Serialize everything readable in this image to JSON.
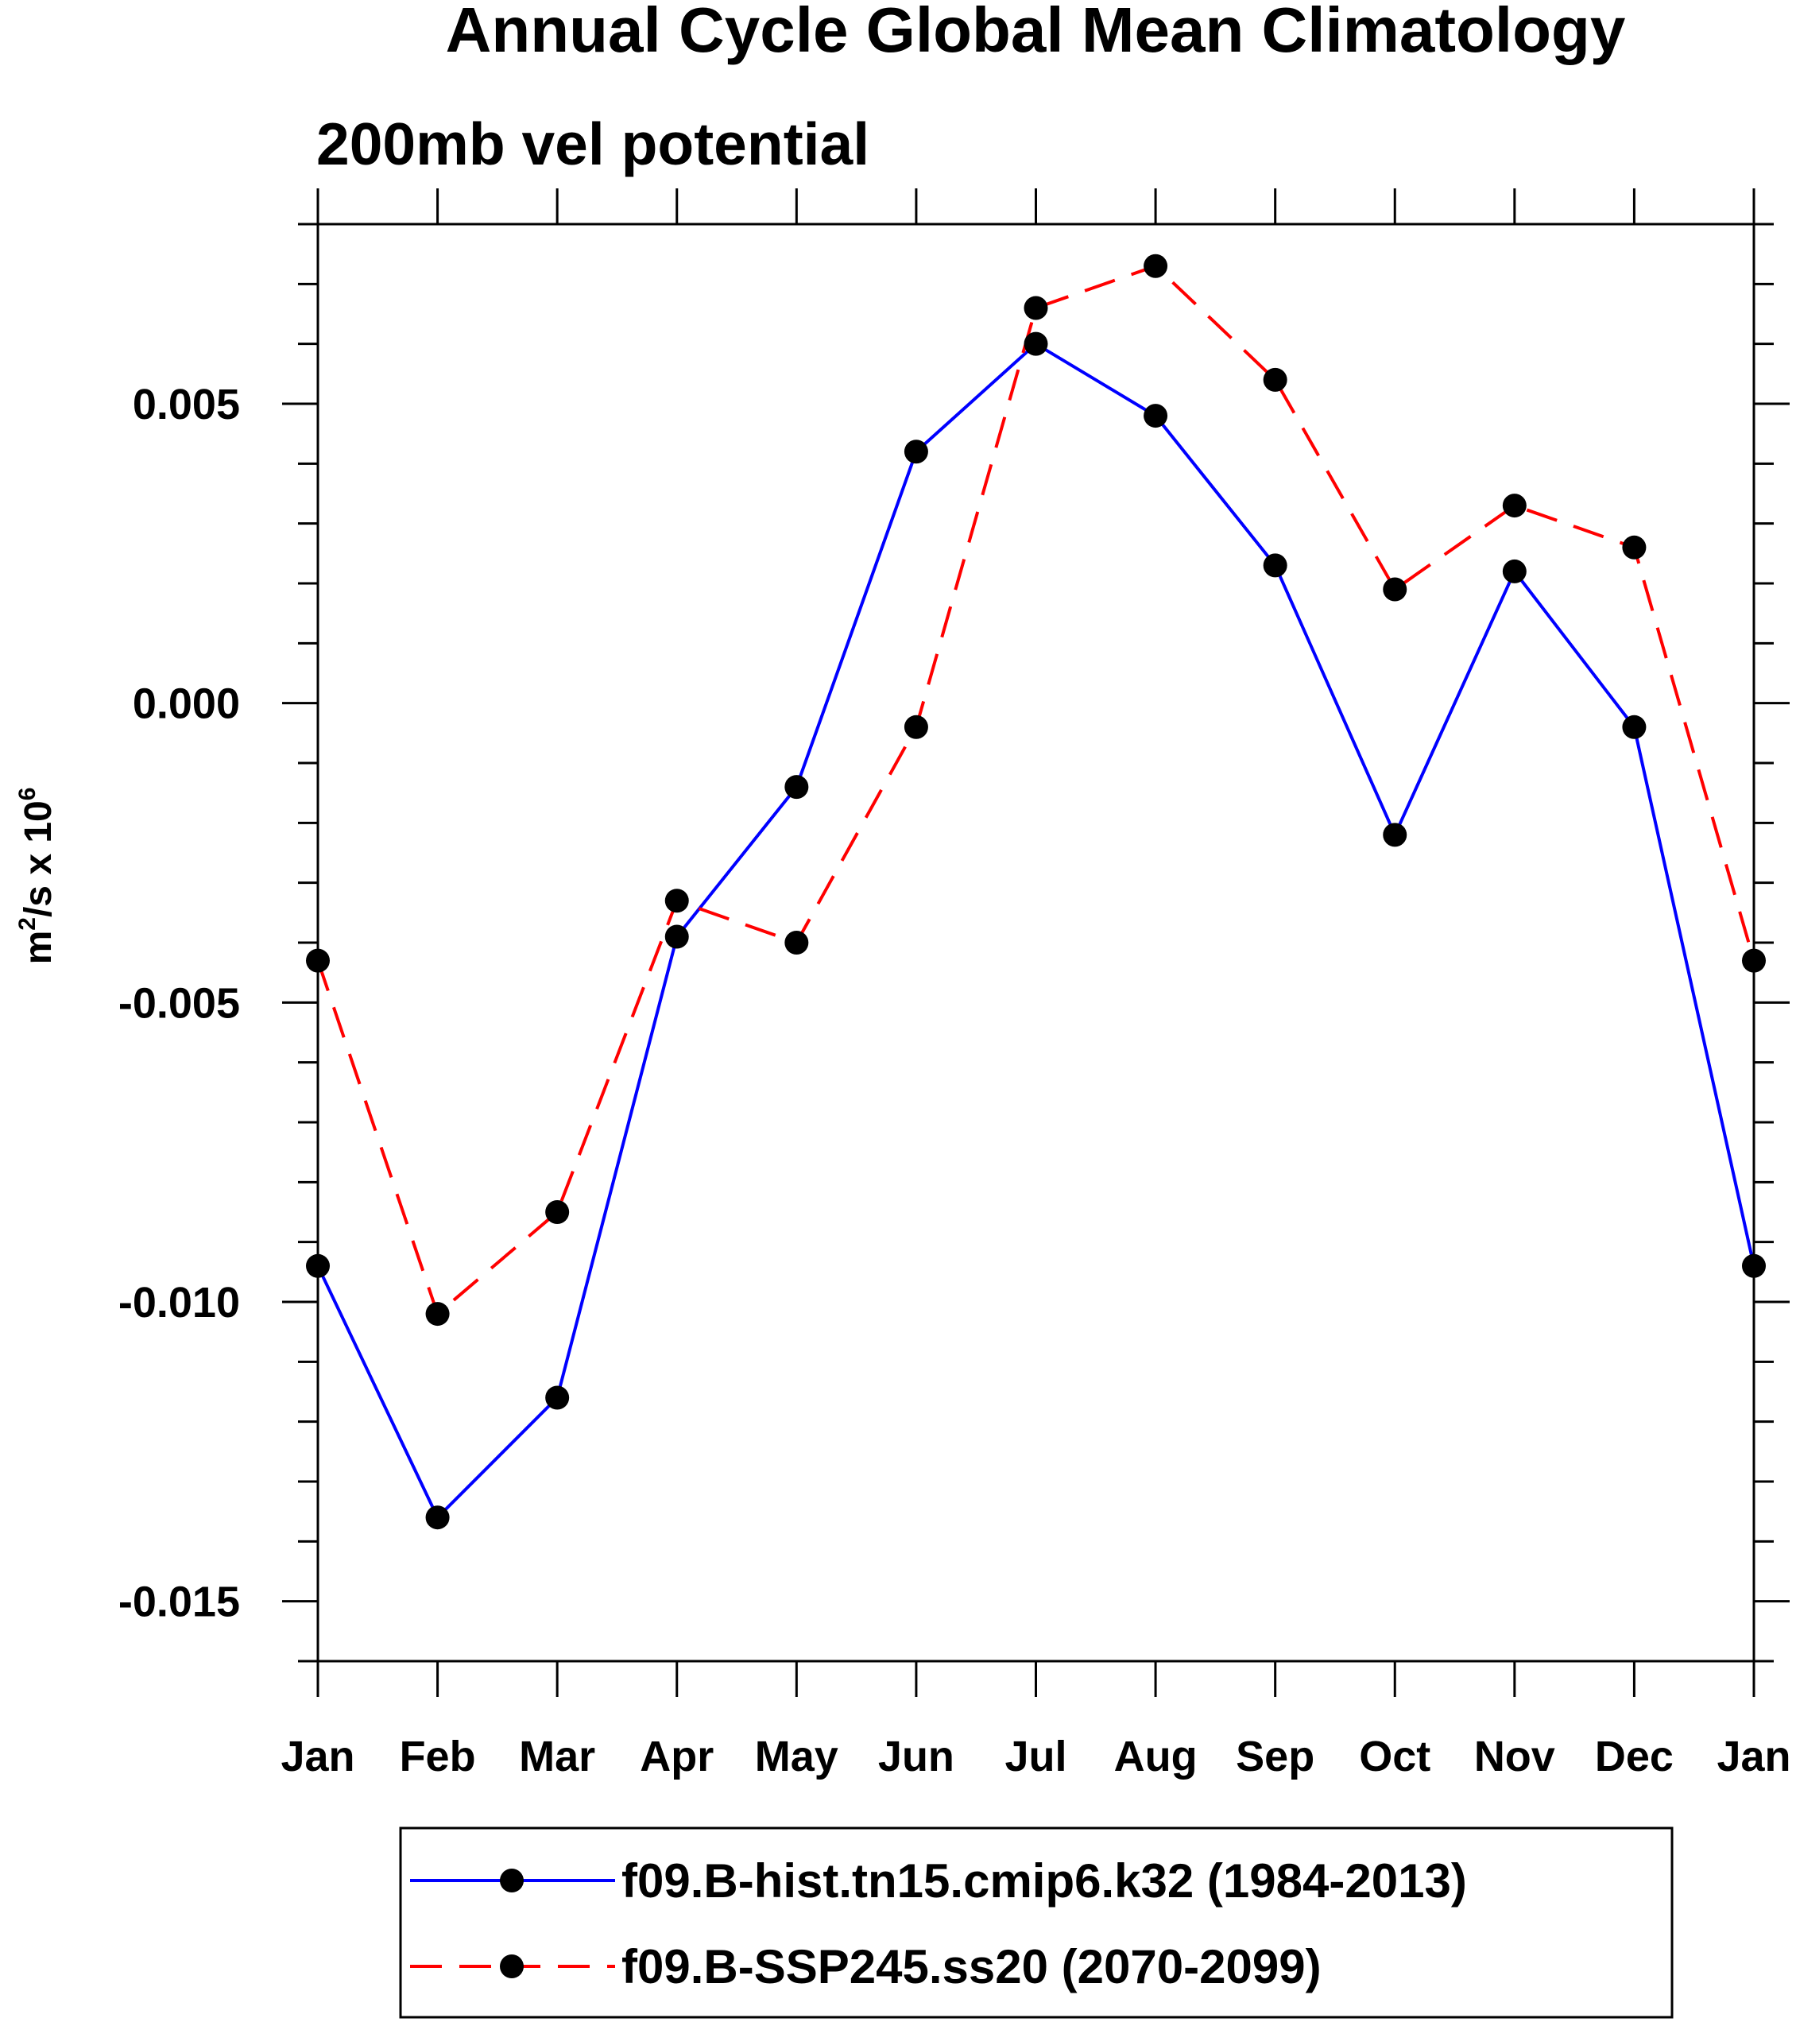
{
  "chart_data": {
    "type": "line",
    "title": "Annual Cycle Global Mean Climatology",
    "subtitle": "200mb vel potential",
    "xlabel": "",
    "ylabel_base": "m",
    "ylabel_sup1": "2",
    "ylabel_mid": "/s x 10",
    "ylabel_sup2": "6",
    "categories": [
      "Jan",
      "Feb",
      "Mar",
      "Apr",
      "May",
      "Jun",
      "Jul",
      "Aug",
      "Sep",
      "Oct",
      "Nov",
      "Dec",
      "Jan"
    ],
    "ylim": [
      -0.016,
      0.008
    ],
    "yticks": [
      0.005,
      0.0,
      -0.005,
      -0.01,
      -0.015
    ],
    "ytick_labels": [
      "0.005",
      "0.000",
      "-0.005",
      "-0.010",
      "-0.015"
    ],
    "series": [
      {
        "name": "f09.B-hist.tn15.cmip6.k32 (1984-2013)",
        "color": "#0000ff",
        "dashed": false,
        "values": [
          -0.0094,
          -0.0136,
          -0.0116,
          -0.0039,
          -0.0014,
          0.0042,
          0.006,
          0.0048,
          0.0023,
          -0.0022,
          0.0022,
          -0.0004,
          -0.0094
        ]
      },
      {
        "name": "f09.B-SSP245.ss20 (2070-2099)",
        "color": "#ff0000",
        "dashed": true,
        "values": [
          -0.0043,
          -0.0102,
          -0.0085,
          -0.0033,
          -0.004,
          -0.0004,
          0.0066,
          0.0073,
          0.0054,
          0.0019,
          0.0033,
          0.0026,
          -0.0043
        ]
      }
    ],
    "marker_color": "#000000"
  }
}
